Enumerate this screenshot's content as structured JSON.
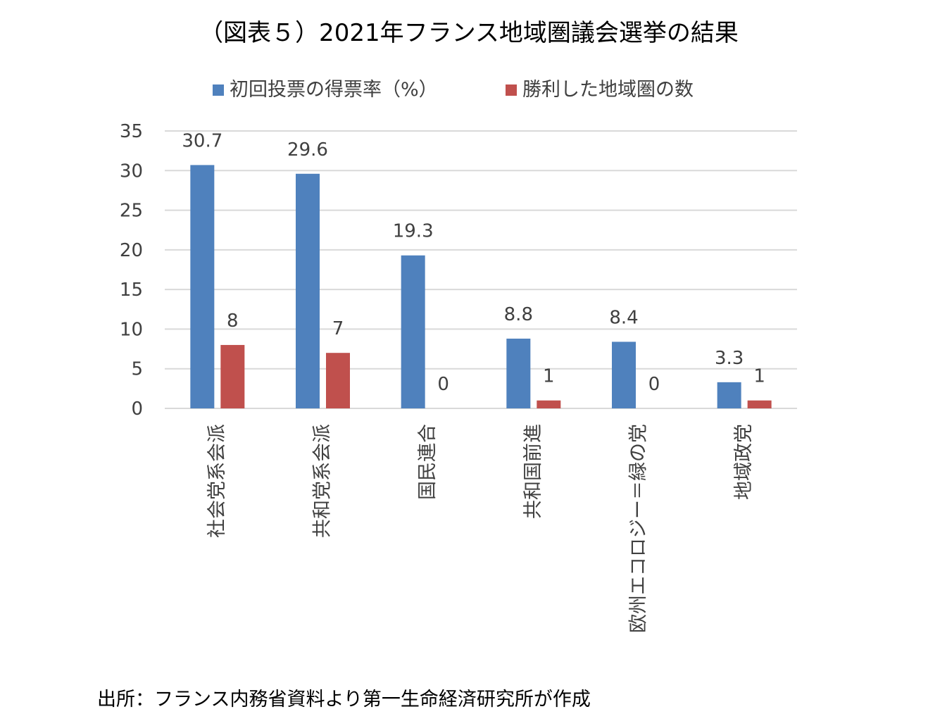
{
  "chart_data": {
    "type": "bar",
    "title": "（図表５）2021年フランス地域圏議会選挙の結果",
    "categories": [
      "社会党系会派",
      "共和党系会派",
      "国民連合",
      "共和国前進",
      "欧州エコロジー＝緑の党",
      "地域政党"
    ],
    "series": [
      {
        "name": "初回投票の得票率（%）",
        "values": [
          30.7,
          29.6,
          19.3,
          8.8,
          8.4,
          3.3
        ],
        "color": "#4F81BD"
      },
      {
        "name": "勝利した地域圏の数",
        "values": [
          8,
          7,
          0,
          1,
          0,
          1
        ],
        "color": "#C0504D"
      }
    ],
    "value_labels": [
      [
        "30.7",
        "29.6",
        "19.3",
        "8.8",
        "8.4",
        "3.3"
      ],
      [
        "8",
        "7",
        "0",
        "1",
        "0",
        "1"
      ]
    ],
    "ylim": [
      0,
      35
    ],
    "yticks": [
      "0",
      "5",
      "10",
      "15",
      "20",
      "25",
      "30",
      "35"
    ],
    "grid": true,
    "legend_position": "top",
    "xlabel": "",
    "ylabel": ""
  },
  "source_note": "出所：フランス内務省資料より第一生命経済研究所が作成"
}
